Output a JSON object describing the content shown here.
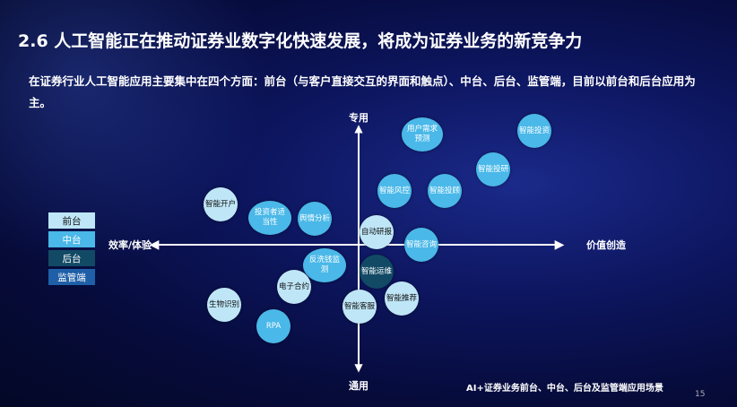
{
  "title": "2.6 人工智能正在推动证券业数字化快速发展，将成为证券业务的新竞争力",
  "subtitle": "在证券行业人工智能应用主要集中在四个方面：前台（与客户直接交互的界面和触点）、中台、后台、监管端，目前以前台和后台应用为主。",
  "axes": {
    "top": "专用",
    "bottom": "通用",
    "left": "效率/体验",
    "right": "价值创造"
  },
  "legend": [
    {
      "label": "前台",
      "color": "#bfe6f7"
    },
    {
      "label": "中台",
      "color": "#4ab8e8"
    },
    {
      "label": "后台",
      "color": "#124a66"
    },
    {
      "label": "监管端",
      "color": "#1f5fa8"
    }
  ],
  "bubbles": [
    {
      "label": "用户需求预测",
      "category": "中台"
    },
    {
      "label": "智能投资",
      "category": "中台"
    },
    {
      "label": "智能投研",
      "category": "中台"
    },
    {
      "label": "智能风控",
      "category": "中台"
    },
    {
      "label": "智能投顾",
      "category": "中台"
    },
    {
      "label": "智能开户",
      "category": "前台"
    },
    {
      "label": "投资者适当性",
      "category": "中台"
    },
    {
      "label": "舆情分析",
      "category": "中台"
    },
    {
      "label": "自动研报",
      "category": "前台"
    },
    {
      "label": "智能咨询",
      "category": "中台"
    },
    {
      "label": "反洗钱监测",
      "category": "中台"
    },
    {
      "label": "智能运维",
      "category": "后台"
    },
    {
      "label": "电子合约",
      "category": "前台"
    },
    {
      "label": "生物识别",
      "category": "前台"
    },
    {
      "label": "智能客服",
      "category": "前台"
    },
    {
      "label": "智能推荐",
      "category": "前台"
    },
    {
      "label": "RPA",
      "category": "中台"
    }
  ],
  "caption": "AI+证券业务前台、中台、后台及监管端应用场景",
  "page_number": "15"
}
